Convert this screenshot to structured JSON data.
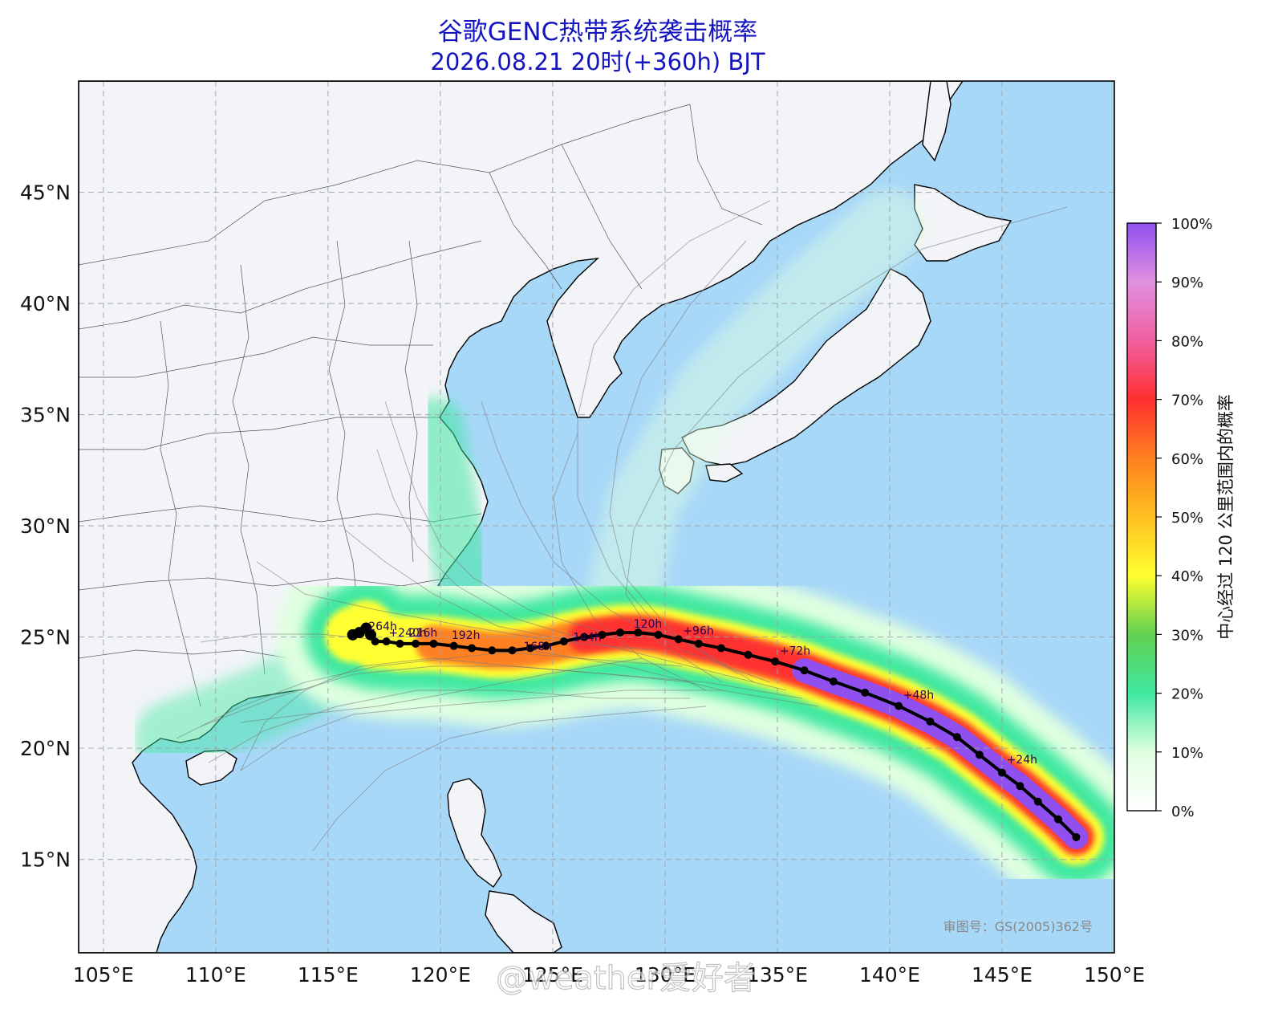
{
  "header": {
    "title": "谷歌GENC热带系统袭击概率",
    "subtitle": "2026.08.21 20时(+360h) BJT"
  },
  "map": {
    "lon_range": [
      103.9,
      150.0
    ],
    "lat_range": [
      10.8,
      50.0
    ],
    "lon_ticks": [
      105,
      110,
      115,
      120,
      125,
      130,
      135,
      140,
      145,
      150
    ],
    "lon_tick_labels": [
      "105°E",
      "110°E",
      "115°E",
      "120°E",
      "125°E",
      "130°E",
      "135°E",
      "140°E",
      "145°E",
      "150°E"
    ],
    "lat_ticks": [
      15,
      20,
      25,
      30,
      35,
      40,
      45
    ],
    "lat_tick_labels": [
      "15°N",
      "20°N",
      "25°N",
      "30°N",
      "35°N",
      "40°N",
      "45°N"
    ],
    "ocean_color": "#a8d8f8",
    "land_color": "#f2f4f8",
    "gridlines": true,
    "track": {
      "points": [
        [
          148.3,
          16.0
        ],
        [
          147.5,
          16.8
        ],
        [
          146.6,
          17.6
        ],
        [
          145.8,
          18.3
        ],
        [
          145.0,
          18.9
        ],
        [
          144.0,
          19.7
        ],
        [
          143.0,
          20.5
        ],
        [
          141.8,
          21.2
        ],
        [
          140.4,
          21.9
        ],
        [
          138.9,
          22.5
        ],
        [
          137.5,
          23.0
        ],
        [
          136.2,
          23.5
        ],
        [
          134.9,
          23.9
        ],
        [
          133.7,
          24.2
        ],
        [
          132.5,
          24.5
        ],
        [
          131.5,
          24.7
        ],
        [
          130.6,
          24.9
        ],
        [
          129.7,
          25.1
        ],
        [
          128.8,
          25.2
        ],
        [
          128.0,
          25.2
        ],
        [
          127.2,
          25.1
        ],
        [
          126.4,
          25.0
        ],
        [
          125.5,
          24.8
        ],
        [
          124.7,
          24.6
        ],
        [
          124.0,
          24.5
        ],
        [
          123.2,
          24.4
        ],
        [
          122.3,
          24.4
        ],
        [
          121.4,
          24.5
        ],
        [
          120.6,
          24.6
        ],
        [
          119.7,
          24.7
        ],
        [
          118.9,
          24.7
        ],
        [
          118.2,
          24.7
        ],
        [
          117.6,
          24.8
        ],
        [
          117.1,
          24.8
        ],
        [
          116.9,
          25.1
        ],
        [
          116.7,
          25.4
        ],
        [
          116.4,
          25.2
        ],
        [
          116.1,
          25.1
        ]
      ],
      "labels": [
        {
          "text": "+24h",
          "lon": 145.2,
          "lat": 19.1
        },
        {
          "text": "+48h",
          "lon": 140.6,
          "lat": 22.0
        },
        {
          "text": "+72h",
          "lon": 135.1,
          "lat": 24.0
        },
        {
          "text": "+96h",
          "lon": 130.8,
          "lat": 24.9
        },
        {
          "text": "120h",
          "lon": 128.6,
          "lat": 25.2
        },
        {
          "text": "144h",
          "lon": 125.9,
          "lat": 24.6
        },
        {
          "text": "168h",
          "lon": 123.7,
          "lat": 24.2
        },
        {
          "text": "192h",
          "lon": 120.5,
          "lat": 24.7
        },
        {
          "text": "216h",
          "lon": 118.6,
          "lat": 24.8
        },
        {
          "text": "+240h",
          "lon": 117.7,
          "lat": 24.8
        },
        {
          "text": "264h",
          "lon": 116.8,
          "lat": 25.1
        }
      ]
    }
  },
  "colorbar": {
    "label": "中心经过 120 公里范围内的概率",
    "ticks": [
      "0%",
      "10%",
      "20%",
      "30%",
      "40%",
      "50%",
      "60%",
      "70%",
      "80%",
      "90%",
      "100%"
    ],
    "colors": [
      "#ffffff",
      "#e0ffe0",
      "#40e8a0",
      "#60d050",
      "#ffff30",
      "#ffc020",
      "#ff8020",
      "#ff3030",
      "#f060a0",
      "#e090e0",
      "#9050f0"
    ]
  },
  "credits": {
    "review_number": "审图号：GS(2005)362号",
    "watermark": "@weather爱好者"
  }
}
